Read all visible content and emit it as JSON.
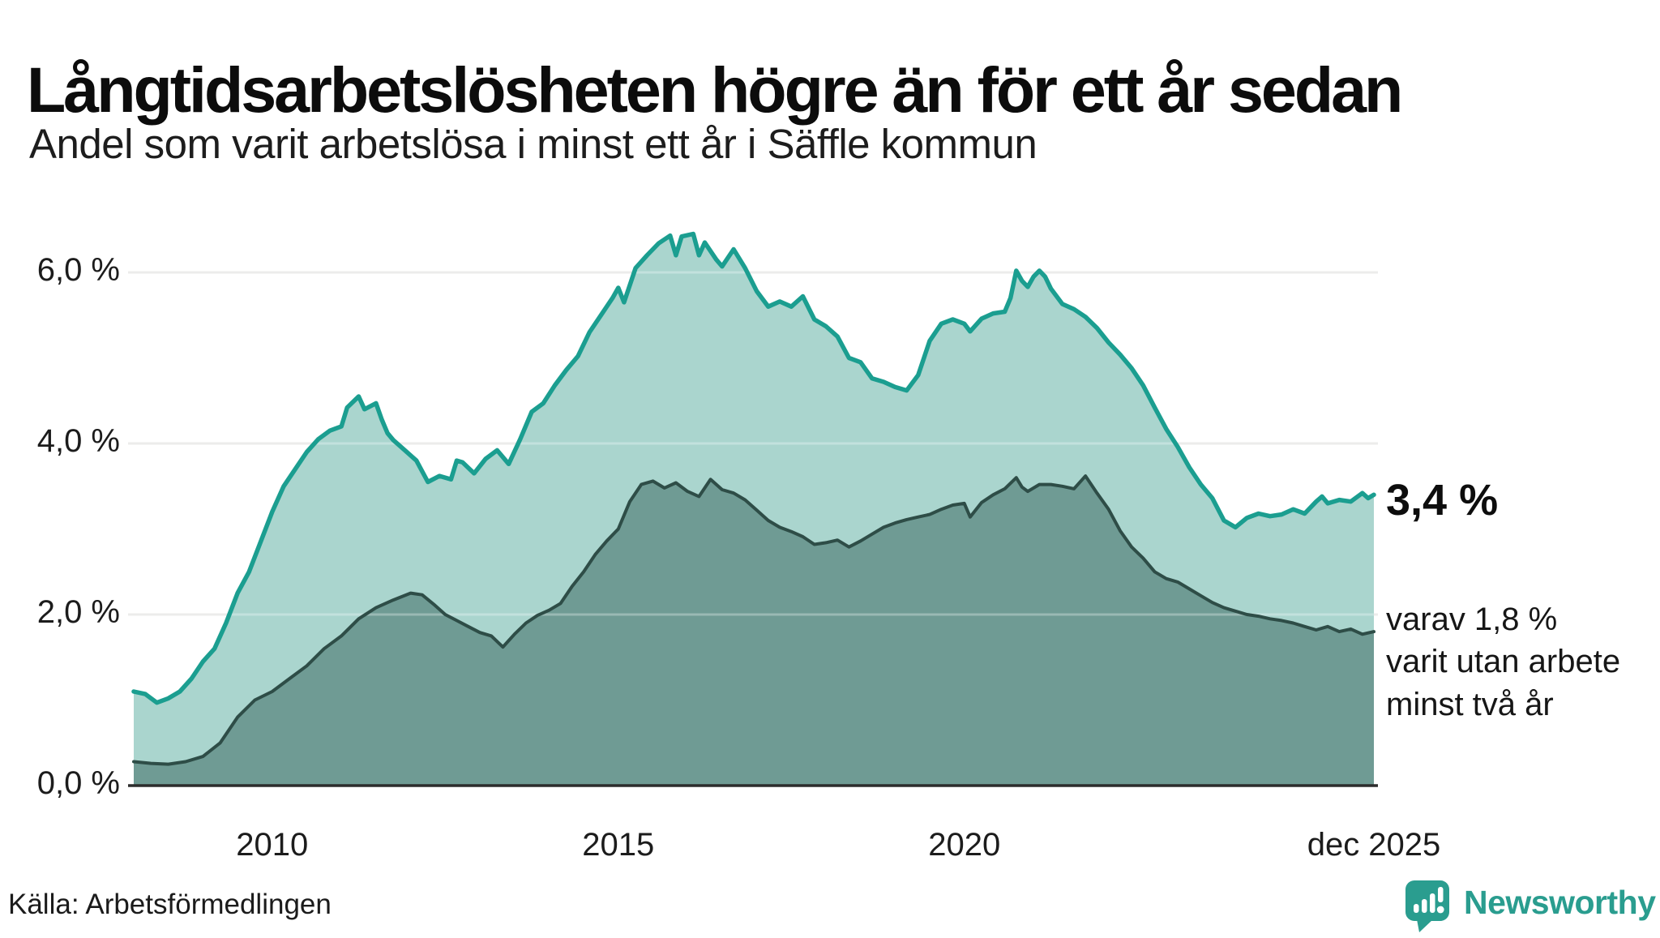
{
  "title": "Långtidsarbetslösheten högre än för ett år sedan",
  "subtitle": "Andel som varit arbetslösa i minst ett år i Säffle kommun",
  "source": "Källa: Arbetsförmedlingen",
  "brand": {
    "name": "Newsworthy"
  },
  "annotations": {
    "latest_total": "3,4 %",
    "breakdown": [
      "varav 1,8 %",
      "varit utan arbete",
      "minst två år"
    ]
  },
  "colors": {
    "total_line": "#1b9e90",
    "total_fill": "#aad5ce",
    "two_year_line": "#2e4d47",
    "two_year_fill": "#6f9b94",
    "gridline": "#e4e4e2",
    "gridline_overlay": "rgba(255,255,255,0.30)",
    "baseline": "#2c2c2c",
    "brand": "#2a9d8f"
  },
  "chart_data": {
    "type": "area",
    "title": "Andel som varit arbetslösa i minst ett år i Säffle kommun",
    "xlabel": "",
    "ylabel": "",
    "unit": "%",
    "ylim": [
      0,
      6.6
    ],
    "x_range": [
      "2008-01",
      "2025-12"
    ],
    "grid": "horizontal",
    "legend_position": "none",
    "y_ticks": [
      {
        "label": "0,0 %",
        "value": 0
      },
      {
        "label": "2,0 %",
        "value": 2
      },
      {
        "label": "4,0 %",
        "value": 4
      },
      {
        "label": "6,0 %",
        "value": 6
      }
    ],
    "x_ticks": [
      {
        "label": "2010",
        "month": "2010-01"
      },
      {
        "label": "2015",
        "month": "2015-01"
      },
      {
        "label": "2020",
        "month": "2020-01"
      },
      {
        "label": "dec 2025",
        "month": "2025-12"
      }
    ],
    "series": [
      {
        "name": "Arbetslösa minst ett år",
        "end_label": "3,4 %",
        "points": [
          [
            "2008-01",
            1.1
          ],
          [
            "2008-03",
            1.07
          ],
          [
            "2008-05",
            0.97
          ],
          [
            "2008-07",
            1.02
          ],
          [
            "2008-09",
            1.1
          ],
          [
            "2008-11",
            1.25
          ],
          [
            "2009-01",
            1.45
          ],
          [
            "2009-03",
            1.6
          ],
          [
            "2009-05",
            1.9
          ],
          [
            "2009-07",
            2.25
          ],
          [
            "2009-09",
            2.5
          ],
          [
            "2009-11",
            2.85
          ],
          [
            "2010-01",
            3.2
          ],
          [
            "2010-03",
            3.5
          ],
          [
            "2010-05",
            3.7
          ],
          [
            "2010-07",
            3.9
          ],
          [
            "2010-09",
            4.05
          ],
          [
            "2010-11",
            4.15
          ],
          [
            "2011-01",
            4.2
          ],
          [
            "2011-02",
            4.42
          ],
          [
            "2011-04",
            4.55
          ],
          [
            "2011-05",
            4.4
          ],
          [
            "2011-07",
            4.47
          ],
          [
            "2011-08",
            4.28
          ],
          [
            "2011-09",
            4.12
          ],
          [
            "2011-10",
            4.04
          ],
          [
            "2011-12",
            3.92
          ],
          [
            "2012-02",
            3.8
          ],
          [
            "2012-04",
            3.55
          ],
          [
            "2012-06",
            3.62
          ],
          [
            "2012-08",
            3.58
          ],
          [
            "2012-09",
            3.8
          ],
          [
            "2012-10",
            3.78
          ],
          [
            "2012-12",
            3.65
          ],
          [
            "2013-02",
            3.82
          ],
          [
            "2013-04",
            3.92
          ],
          [
            "2013-06",
            3.76
          ],
          [
            "2013-08",
            4.05
          ],
          [
            "2013-10",
            4.37
          ],
          [
            "2013-12",
            4.47
          ],
          [
            "2014-02",
            4.68
          ],
          [
            "2014-04",
            4.86
          ],
          [
            "2014-06",
            5.02
          ],
          [
            "2014-08",
            5.3
          ],
          [
            "2014-10",
            5.5
          ],
          [
            "2014-12",
            5.7
          ],
          [
            "2015-01",
            5.82
          ],
          [
            "2015-02",
            5.65
          ],
          [
            "2015-04",
            6.05
          ],
          [
            "2015-06",
            6.2
          ],
          [
            "2015-08",
            6.34
          ],
          [
            "2015-10",
            6.43
          ],
          [
            "2015-11",
            6.2
          ],
          [
            "2015-12",
            6.42
          ],
          [
            "2016-02",
            6.45
          ],
          [
            "2016-03",
            6.2
          ],
          [
            "2016-04",
            6.35
          ],
          [
            "2016-06",
            6.15
          ],
          [
            "2016-07",
            6.07
          ],
          [
            "2016-09",
            6.27
          ],
          [
            "2016-11",
            6.05
          ],
          [
            "2017-01",
            5.78
          ],
          [
            "2017-03",
            5.6
          ],
          [
            "2017-05",
            5.66
          ],
          [
            "2017-07",
            5.6
          ],
          [
            "2017-09",
            5.72
          ],
          [
            "2017-11",
            5.45
          ],
          [
            "2018-01",
            5.37
          ],
          [
            "2018-03",
            5.25
          ],
          [
            "2018-05",
            5.0
          ],
          [
            "2018-07",
            4.95
          ],
          [
            "2018-09",
            4.76
          ],
          [
            "2018-11",
            4.72
          ],
          [
            "2019-01",
            4.66
          ],
          [
            "2019-03",
            4.62
          ],
          [
            "2019-05",
            4.8
          ],
          [
            "2019-07",
            5.2
          ],
          [
            "2019-09",
            5.4
          ],
          [
            "2019-11",
            5.45
          ],
          [
            "2020-01",
            5.4
          ],
          [
            "2020-02",
            5.31
          ],
          [
            "2020-04",
            5.46
          ],
          [
            "2020-06",
            5.52
          ],
          [
            "2020-08",
            5.54
          ],
          [
            "2020-09",
            5.7
          ],
          [
            "2020-10",
            6.02
          ],
          [
            "2020-11",
            5.9
          ],
          [
            "2020-12",
            5.83
          ],
          [
            "2021-01",
            5.95
          ],
          [
            "2021-02",
            6.02
          ],
          [
            "2021-03",
            5.95
          ],
          [
            "2021-04",
            5.81
          ],
          [
            "2021-06",
            5.63
          ],
          [
            "2021-08",
            5.57
          ],
          [
            "2021-10",
            5.48
          ],
          [
            "2021-12",
            5.35
          ],
          [
            "2022-02",
            5.18
          ],
          [
            "2022-04",
            5.04
          ],
          [
            "2022-06",
            4.88
          ],
          [
            "2022-08",
            4.68
          ],
          [
            "2022-10",
            4.42
          ],
          [
            "2022-12",
            4.17
          ],
          [
            "2023-02",
            3.96
          ],
          [
            "2023-04",
            3.72
          ],
          [
            "2023-06",
            3.52
          ],
          [
            "2023-08",
            3.36
          ],
          [
            "2023-10",
            3.1
          ],
          [
            "2023-12",
            3.02
          ],
          [
            "2024-02",
            3.13
          ],
          [
            "2024-04",
            3.18
          ],
          [
            "2024-06",
            3.15
          ],
          [
            "2024-08",
            3.17
          ],
          [
            "2024-10",
            3.23
          ],
          [
            "2024-12",
            3.18
          ],
          [
            "2025-02",
            3.32
          ],
          [
            "2025-03",
            3.38
          ],
          [
            "2025-04",
            3.3
          ],
          [
            "2025-06",
            3.34
          ],
          [
            "2025-08",
            3.32
          ],
          [
            "2025-10",
            3.42
          ],
          [
            "2025-11",
            3.36
          ],
          [
            "2025-12",
            3.4
          ]
        ]
      },
      {
        "name": "Varav utan arbete minst två år",
        "end_label": "1,8 %",
        "points": [
          [
            "2008-01",
            0.28
          ],
          [
            "2008-04",
            0.26
          ],
          [
            "2008-07",
            0.25
          ],
          [
            "2008-10",
            0.28
          ],
          [
            "2009-01",
            0.34
          ],
          [
            "2009-04",
            0.5
          ],
          [
            "2009-07",
            0.8
          ],
          [
            "2009-10",
            1.0
          ],
          [
            "2010-01",
            1.1
          ],
          [
            "2010-04",
            1.25
          ],
          [
            "2010-07",
            1.4
          ],
          [
            "2010-10",
            1.6
          ],
          [
            "2011-01",
            1.75
          ],
          [
            "2011-04",
            1.95
          ],
          [
            "2011-07",
            2.08
          ],
          [
            "2011-10",
            2.17
          ],
          [
            "2012-01",
            2.25
          ],
          [
            "2012-03",
            2.23
          ],
          [
            "2012-05",
            2.12
          ],
          [
            "2012-07",
            2.0
          ],
          [
            "2012-09",
            1.93
          ],
          [
            "2012-11",
            1.86
          ],
          [
            "2013-01",
            1.79
          ],
          [
            "2013-03",
            1.75
          ],
          [
            "2013-05",
            1.62
          ],
          [
            "2013-07",
            1.77
          ],
          [
            "2013-09",
            1.9
          ],
          [
            "2013-11",
            1.99
          ],
          [
            "2014-01",
            2.05
          ],
          [
            "2014-03",
            2.13
          ],
          [
            "2014-05",
            2.33
          ],
          [
            "2014-07",
            2.5
          ],
          [
            "2014-09",
            2.7
          ],
          [
            "2014-11",
            2.86
          ],
          [
            "2015-01",
            3.0
          ],
          [
            "2015-03",
            3.32
          ],
          [
            "2015-05",
            3.52
          ],
          [
            "2015-07",
            3.56
          ],
          [
            "2015-09",
            3.48
          ],
          [
            "2015-11",
            3.54
          ],
          [
            "2016-01",
            3.44
          ],
          [
            "2016-03",
            3.38
          ],
          [
            "2016-05",
            3.58
          ],
          [
            "2016-07",
            3.46
          ],
          [
            "2016-09",
            3.42
          ],
          [
            "2016-11",
            3.34
          ],
          [
            "2017-01",
            3.22
          ],
          [
            "2017-03",
            3.1
          ],
          [
            "2017-05",
            3.02
          ],
          [
            "2017-07",
            2.97
          ],
          [
            "2017-09",
            2.91
          ],
          [
            "2017-11",
            2.82
          ],
          [
            "2018-01",
            2.84
          ],
          [
            "2018-03",
            2.87
          ],
          [
            "2018-05",
            2.79
          ],
          [
            "2018-07",
            2.86
          ],
          [
            "2018-09",
            2.94
          ],
          [
            "2018-11",
            3.02
          ],
          [
            "2019-01",
            3.07
          ],
          [
            "2019-03",
            3.11
          ],
          [
            "2019-05",
            3.14
          ],
          [
            "2019-07",
            3.17
          ],
          [
            "2019-09",
            3.23
          ],
          [
            "2019-11",
            3.28
          ],
          [
            "2020-01",
            3.3
          ],
          [
            "2020-02",
            3.14
          ],
          [
            "2020-04",
            3.31
          ],
          [
            "2020-06",
            3.4
          ],
          [
            "2020-08",
            3.47
          ],
          [
            "2020-10",
            3.6
          ],
          [
            "2020-11",
            3.49
          ],
          [
            "2020-12",
            3.44
          ],
          [
            "2021-02",
            3.52
          ],
          [
            "2021-04",
            3.52
          ],
          [
            "2021-06",
            3.5
          ],
          [
            "2021-08",
            3.47
          ],
          [
            "2021-10",
            3.62
          ],
          [
            "2021-12",
            3.42
          ],
          [
            "2022-02",
            3.23
          ],
          [
            "2022-04",
            2.98
          ],
          [
            "2022-06",
            2.79
          ],
          [
            "2022-08",
            2.66
          ],
          [
            "2022-10",
            2.5
          ],
          [
            "2022-12",
            2.42
          ],
          [
            "2023-02",
            2.38
          ],
          [
            "2023-04",
            2.3
          ],
          [
            "2023-06",
            2.22
          ],
          [
            "2023-08",
            2.14
          ],
          [
            "2023-10",
            2.08
          ],
          [
            "2023-12",
            2.04
          ],
          [
            "2024-02",
            2.0
          ],
          [
            "2024-04",
            1.98
          ],
          [
            "2024-06",
            1.95
          ],
          [
            "2024-08",
            1.93
          ],
          [
            "2024-10",
            1.9
          ],
          [
            "2024-12",
            1.86
          ],
          [
            "2025-02",
            1.82
          ],
          [
            "2025-04",
            1.86
          ],
          [
            "2025-06",
            1.8
          ],
          [
            "2025-08",
            1.83
          ],
          [
            "2025-10",
            1.77
          ],
          [
            "2025-12",
            1.8
          ]
        ]
      }
    ]
  }
}
